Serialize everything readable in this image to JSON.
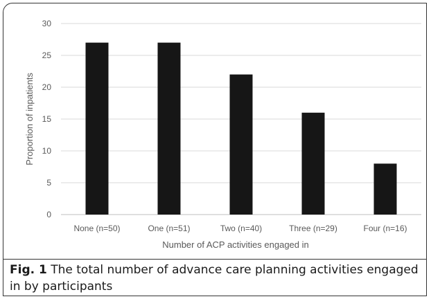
{
  "chart_data": {
    "type": "bar",
    "categories": [
      "None (n=50)",
      "One (n=51)",
      "Two (n=40)",
      "Three (n=29)",
      "Four (n=16)"
    ],
    "values": [
      27,
      27,
      22,
      16,
      8
    ],
    "xlabel": "Number of ACP activities engaged in",
    "ylabel": "Proportion of inpatients",
    "ylim": [
      0,
      30
    ],
    "yticks": [
      0,
      5,
      10,
      15,
      20,
      25,
      30
    ],
    "grid": "horizontal",
    "colors": {
      "bar": "#161616",
      "grid": "#d9d9d9",
      "axis": "#bfbfbf",
      "text": "#595959"
    }
  },
  "caption": {
    "label": "Fig. 1",
    "text": " The total number of advance care planning activities engaged in by participants"
  }
}
